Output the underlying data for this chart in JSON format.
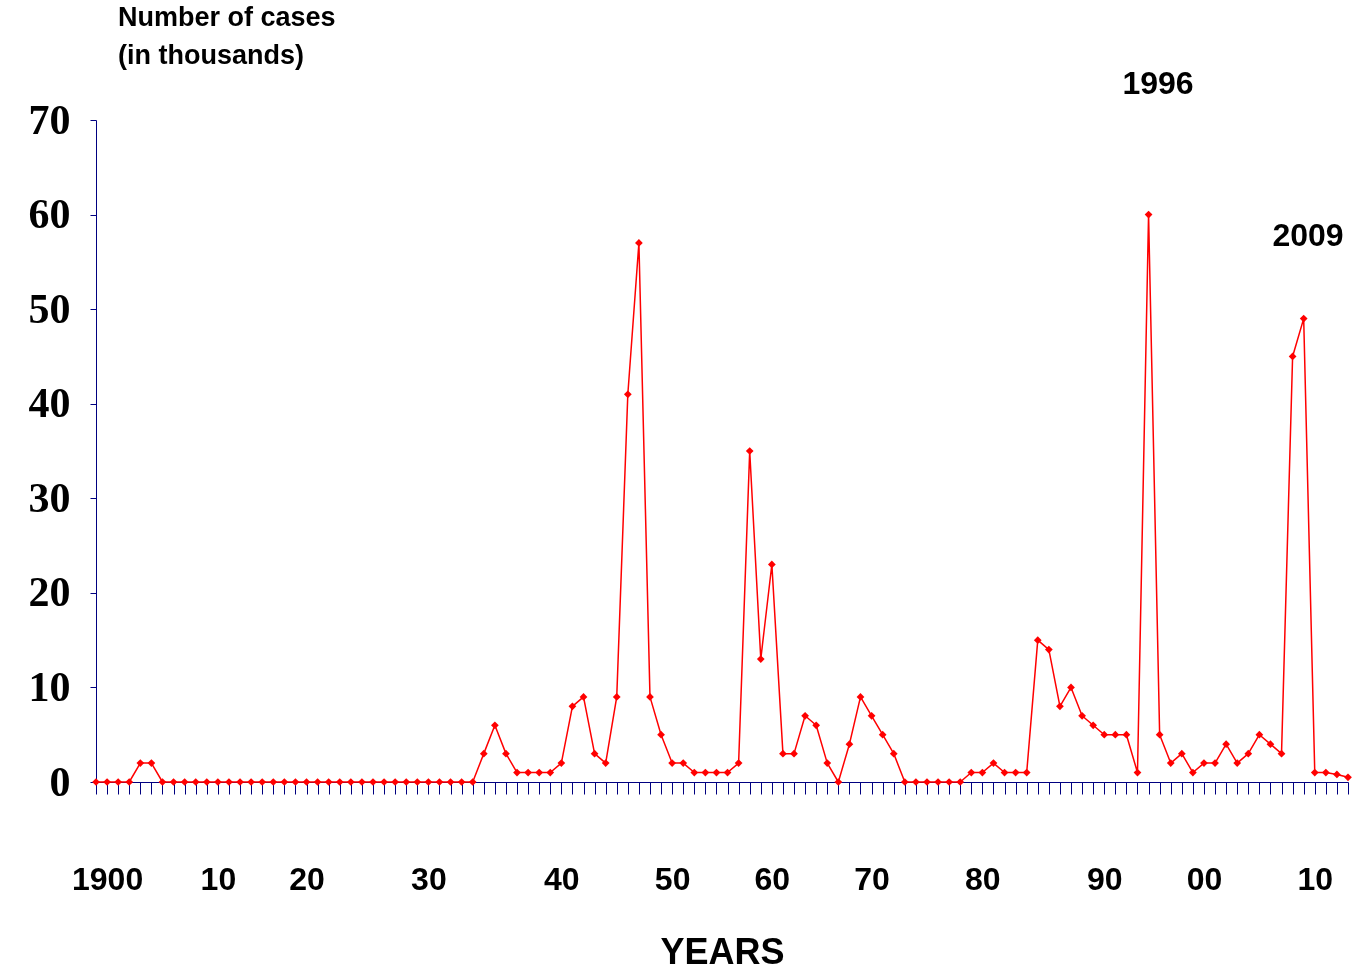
{
  "chart_data": {
    "type": "line",
    "ylabel": "Number of cases\n(in thousands)",
    "xlabel": "YEARS",
    "categories": [
      null,
      "1900",
      null,
      null,
      null,
      null,
      null,
      null,
      null,
      null,
      null,
      "10",
      null,
      null,
      null,
      null,
      null,
      null,
      null,
      "20",
      null,
      null,
      null,
      null,
      null,
      null,
      null,
      null,
      null,
      null,
      "30",
      null,
      null,
      null,
      null,
      null,
      null,
      null,
      null,
      null,
      null,
      null,
      "40",
      null,
      null,
      null,
      null,
      null,
      null,
      null,
      null,
      null,
      "50",
      null,
      null,
      null,
      null,
      null,
      null,
      null,
      null,
      "60",
      null,
      null,
      null,
      null,
      null,
      null,
      null,
      null,
      "70",
      null,
      null,
      null,
      null,
      null,
      null,
      null,
      null,
      null,
      "80",
      null,
      null,
      null,
      null,
      null,
      null,
      null,
      null,
      null,
      null,
      "90",
      null,
      null,
      null,
      null,
      null,
      null,
      null,
      null,
      "00",
      null,
      null,
      null,
      null,
      null,
      null,
      null,
      null,
      null,
      "10",
      null,
      null,
      null
    ],
    "series": [
      {
        "color": "#ff0000",
        "values": [
          0,
          0,
          0,
          0,
          2,
          2,
          0,
          0,
          0,
          0,
          0,
          0,
          0,
          0,
          0,
          0,
          0,
          0,
          0,
          0,
          0,
          0,
          0,
          0,
          0,
          0,
          0,
          0,
          0,
          0,
          0,
          0,
          0,
          0,
          0,
          3,
          6,
          3,
          1,
          1,
          1,
          1,
          2,
          8,
          9,
          3,
          2,
          9,
          41,
          57,
          9,
          5,
          2,
          2,
          1,
          1,
          1,
          1,
          2,
          35,
          13,
          23,
          3,
          3,
          7,
          6,
          2,
          0,
          4,
          9,
          7,
          5,
          3,
          0,
          0,
          0,
          0,
          0,
          0,
          1,
          1,
          2,
          1,
          1,
          1,
          15,
          14,
          8,
          10,
          7,
          6,
          5,
          5,
          5,
          1,
          60,
          5,
          2,
          3,
          1,
          2,
          2,
          4,
          2,
          3,
          5,
          4,
          3,
          45,
          49,
          1,
          1,
          0.8,
          0.5
        ]
      }
    ],
    "ylim": [
      0,
      70
    ],
    "yticks": [
      0,
      10,
      20,
      30,
      40,
      50,
      60,
      70
    ],
    "grid": false,
    "marker": "diamond",
    "line_style": "solid",
    "annotations": [
      "1996",
      "2009"
    ]
  }
}
